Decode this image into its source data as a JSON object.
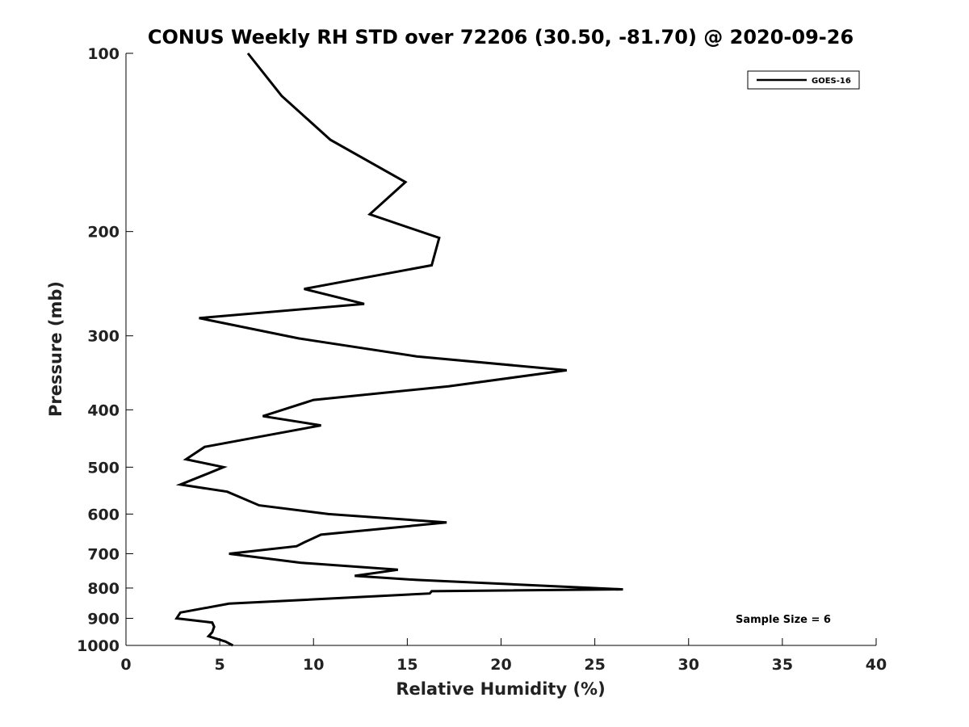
{
  "chart_data": {
    "type": "line",
    "title": "CONUS Weekly RH STD over 72206 (30.50, -81.70) @ 2020-09-26",
    "xlabel": "Relative Humidity (%)",
    "ylabel": "Pressure (mb)",
    "xlim": [
      0,
      40
    ],
    "ylim": [
      1000,
      100
    ],
    "yscale": "log",
    "xticks": [
      0,
      5,
      10,
      15,
      20,
      25,
      30,
      35,
      40
    ],
    "xtick_labels": [
      "0",
      "5",
      "10",
      "15",
      "20",
      "25",
      "30",
      "35",
      "40"
    ],
    "yticks": [
      100,
      200,
      300,
      400,
      500,
      600,
      700,
      800,
      900,
      1000
    ],
    "ytick_labels": [
      "100",
      "200",
      "300",
      "400",
      "500",
      "600",
      "700",
      "800",
      "900",
      "1000"
    ],
    "grid": false,
    "legend_position": "top-right",
    "line_color": "#000000",
    "series": [
      {
        "name": "GOES-16",
        "x": [
          5.7,
          5.3,
          4.4,
          4.6,
          4.7,
          4.6,
          2.7,
          2.9,
          5.5,
          16.2,
          16.3,
          26.5,
          15.5,
          12.2,
          14.5,
          9.3,
          5.5,
          9.1,
          9.5,
          10.4,
          17.1,
          10.8,
          7.1,
          5.4,
          2.9,
          4.2,
          5.2,
          3.2,
          4.2,
          7.0,
          10.4,
          7.3,
          10.0,
          17.2,
          23.5,
          15.5,
          9.2,
          3.9,
          12.7,
          9.5,
          16.3,
          16.7,
          13.0,
          14.9,
          10.9,
          8.3,
          6.5
        ],
        "y": [
          1000,
          985,
          965,
          950,
          930,
          915,
          900,
          880,
          850,
          817,
          810,
          804,
          775,
          763,
          745,
          725,
          700,
          680,
          670,
          650,
          620,
          600,
          580,
          550,
          535,
          515,
          500,
          485,
          462,
          445,
          425,
          410,
          385,
          365,
          343,
          325,
          303,
          280,
          265,
          250,
          228,
          205,
          187,
          165,
          140,
          118,
          100
        ]
      }
    ],
    "annotations": [
      "Sample Size = 6"
    ]
  }
}
